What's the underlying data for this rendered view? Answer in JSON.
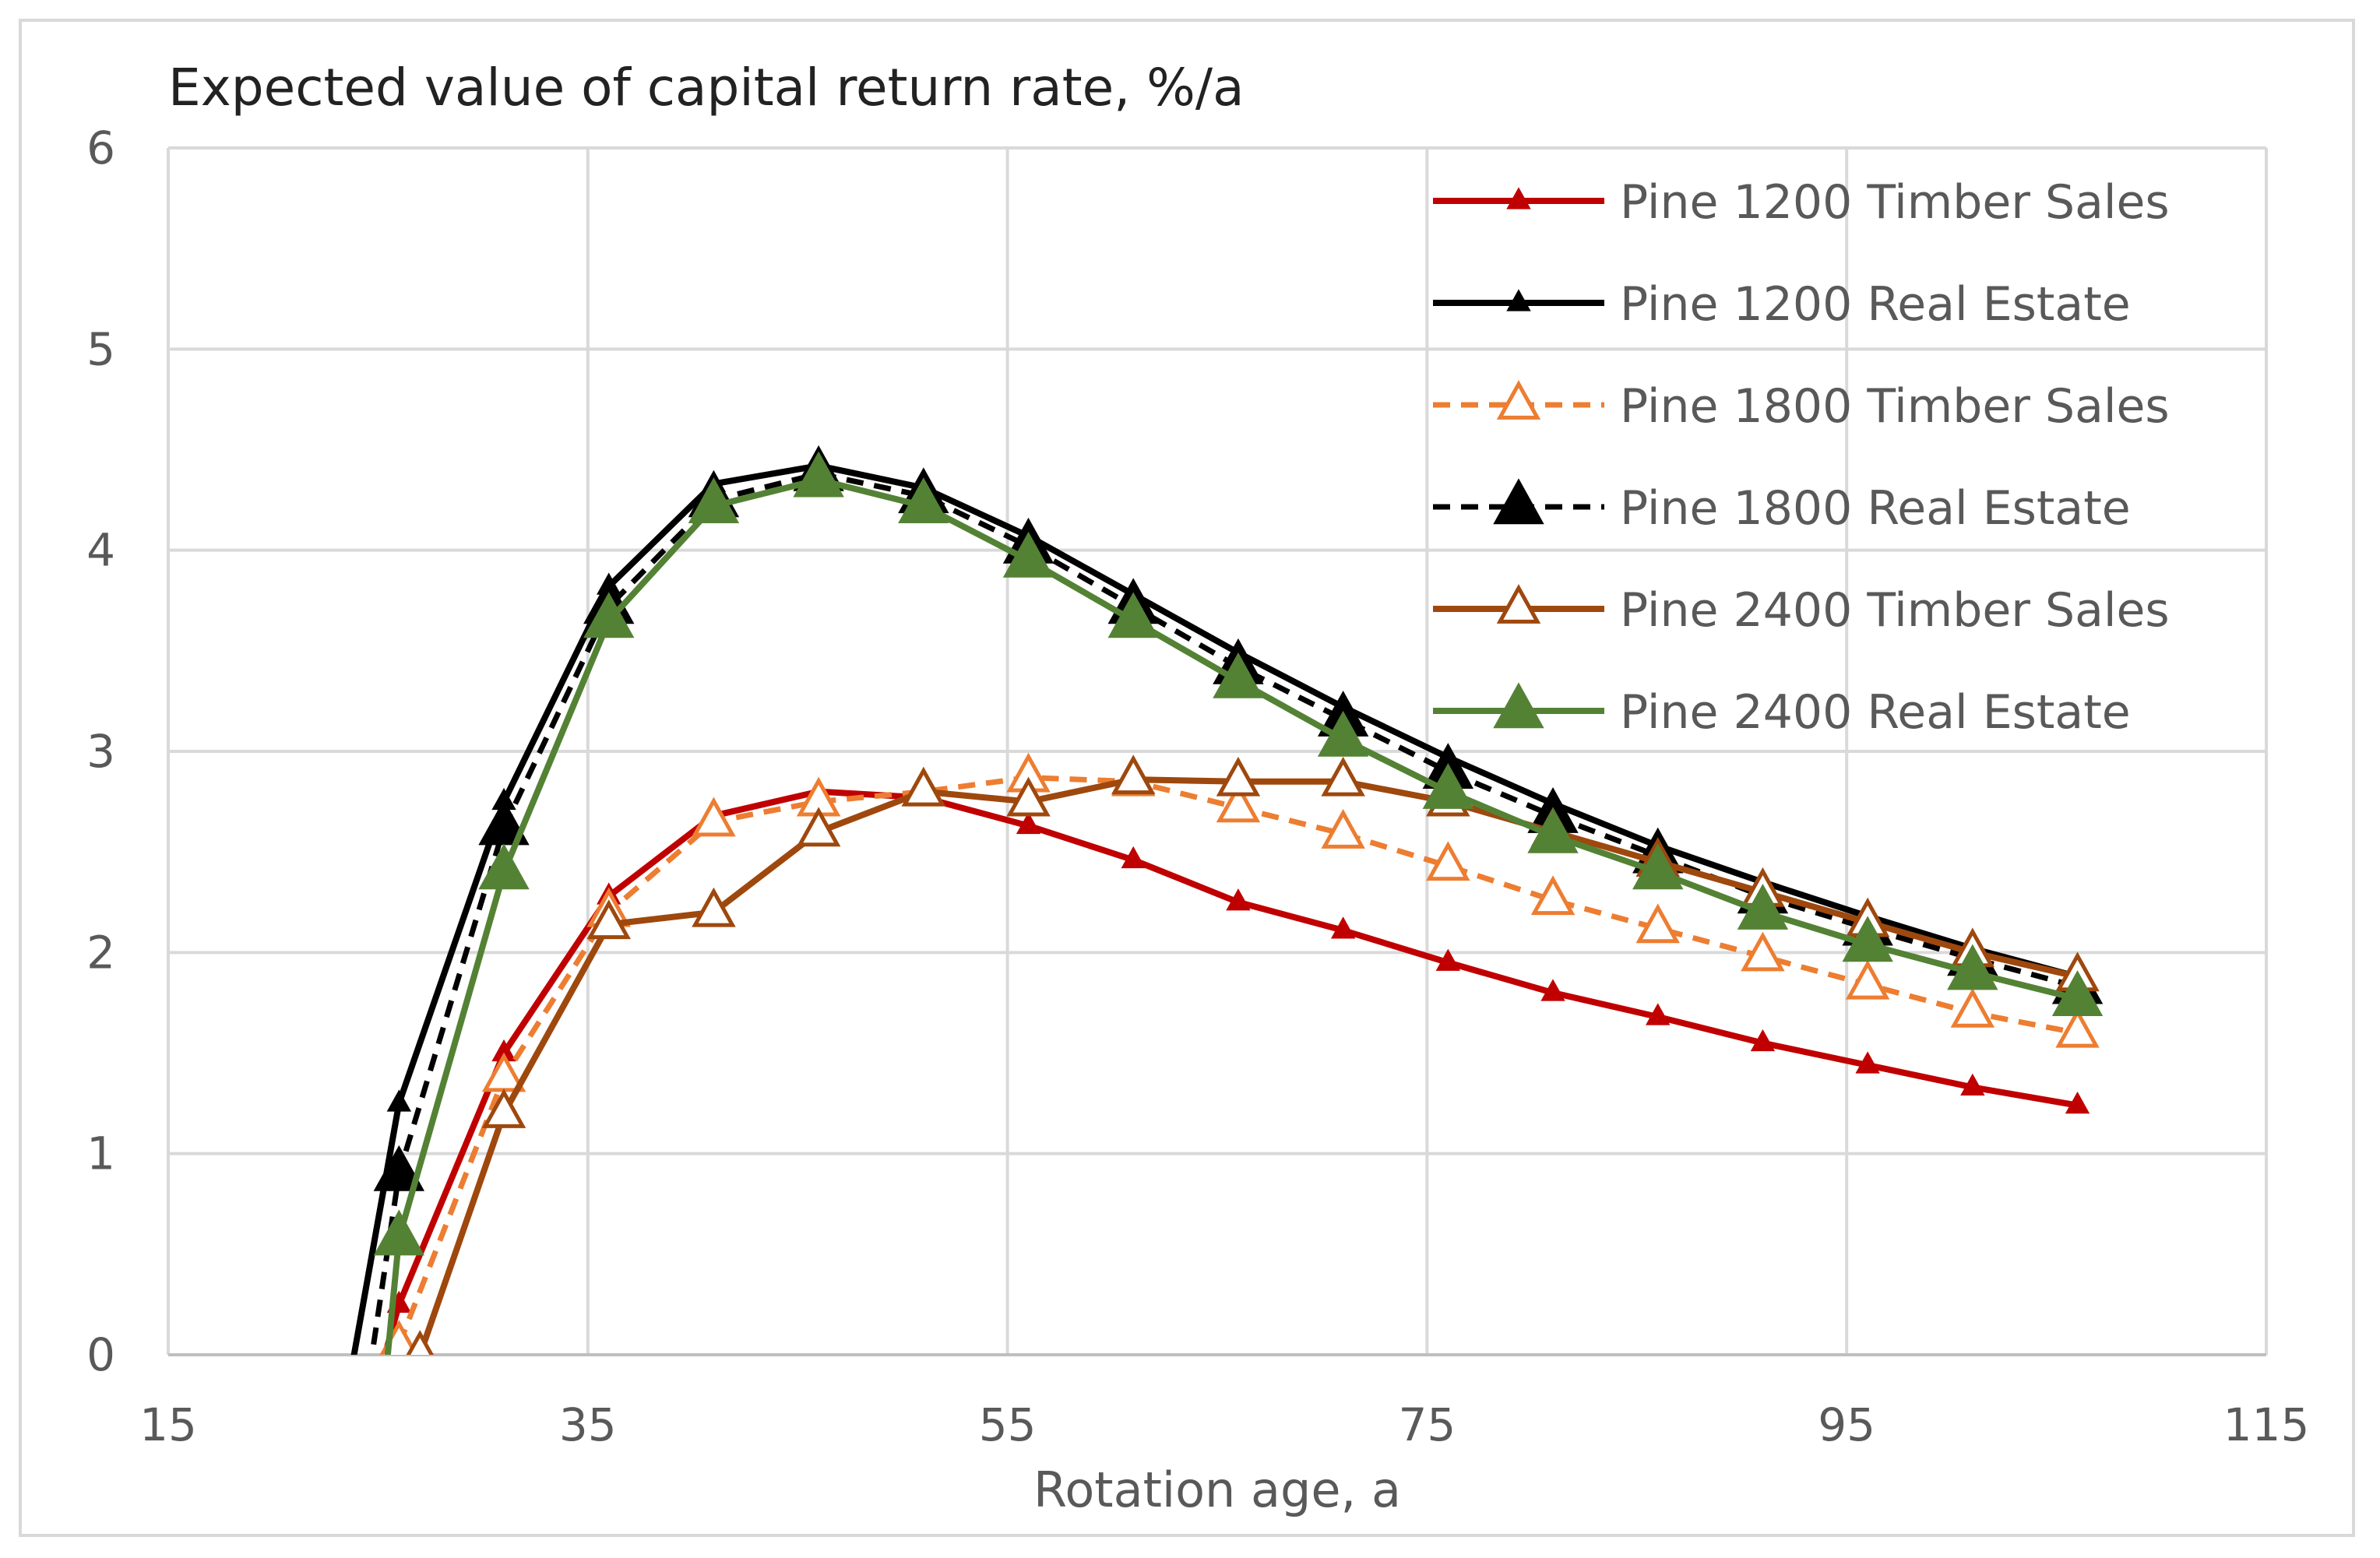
{
  "chart_data": {
    "type": "line",
    "title": "Expected value of capital return rate,  %/a",
    "xlabel": "Rotation age, a",
    "ylabel": "",
    "xlim": [
      15,
      115
    ],
    "ylim": [
      0,
      6
    ],
    "xticks": [
      15,
      35,
      55,
      75,
      95,
      115
    ],
    "yticks": [
      0,
      1,
      2,
      3,
      4,
      5,
      6
    ],
    "grid": true,
    "legend_position": "top-right",
    "series": [
      {
        "name": "Pine 1200 Timber Sales",
        "color": "#c00000",
        "dash": "solid",
        "marker": "small-filled-triangle",
        "x": [
          26,
          31,
          36,
          41,
          46,
          51,
          56,
          61,
          66,
          71,
          76,
          81,
          86,
          91,
          96,
          101,
          106
        ],
        "y": [
          0.25,
          1.5,
          2.28,
          2.68,
          2.8,
          2.77,
          2.63,
          2.46,
          2.25,
          2.11,
          1.95,
          1.8,
          1.68,
          1.55,
          1.44,
          1.33,
          1.24
        ],
        "line_x": [
          24.0,
          26,
          31,
          36,
          41,
          46,
          51,
          56,
          61,
          66,
          71,
          76,
          81,
          86,
          91,
          96,
          101,
          106
        ],
        "line_y": [
          -0.5,
          0.25,
          1.5,
          2.28,
          2.68,
          2.8,
          2.77,
          2.63,
          2.46,
          2.25,
          2.11,
          1.95,
          1.8,
          1.68,
          1.55,
          1.44,
          1.33,
          1.24
        ]
      },
      {
        "name": "Pine 1200 Real Estate",
        "color": "#000000",
        "dash": "solid",
        "marker": "small-filled-triangle",
        "x": [
          26,
          31,
          36,
          41,
          46,
          51,
          56,
          61,
          66,
          71,
          76,
          81,
          86,
          91,
          96,
          101,
          106
        ],
        "y": [
          1.25,
          2.75,
          3.82,
          4.33,
          4.42,
          4.31,
          4.07,
          3.78,
          3.49,
          3.22,
          2.97,
          2.74,
          2.53,
          2.35,
          2.18,
          2.02,
          1.88
        ],
        "line_x": [
          23.0,
          26,
          31,
          36,
          41,
          46,
          51,
          56,
          61,
          66,
          71,
          76,
          81,
          86,
          91,
          96,
          101,
          106
        ],
        "line_y": [
          -0.5,
          1.25,
          2.75,
          3.82,
          4.33,
          4.42,
          4.31,
          4.07,
          3.78,
          3.49,
          3.22,
          2.97,
          2.74,
          2.53,
          2.35,
          2.18,
          2.02,
          1.88
        ]
      },
      {
        "name": "Pine 1800 Timber Sales",
        "color": "#ed7d31",
        "dash": "dashed",
        "marker": "hollow-triangle",
        "x": [
          26,
          31,
          36,
          41,
          46,
          51,
          56,
          61,
          66,
          71,
          76,
          81,
          86,
          91,
          96,
          101,
          106
        ],
        "y": [
          0.05,
          1.38,
          2.2,
          2.65,
          2.75,
          2.8,
          2.87,
          2.85,
          2.72,
          2.59,
          2.43,
          2.26,
          2.12,
          1.98,
          1.84,
          1.7,
          1.6
        ],
        "line_x": [
          25.0,
          26,
          31,
          36,
          41,
          46,
          51,
          56,
          61,
          66,
          71,
          76,
          81,
          86,
          91,
          96,
          101,
          106
        ],
        "line_y": [
          -0.5,
          0.05,
          1.38,
          2.2,
          2.65,
          2.75,
          2.8,
          2.87,
          2.85,
          2.72,
          2.59,
          2.43,
          2.26,
          2.12,
          1.98,
          1.84,
          1.7,
          1.6
        ]
      },
      {
        "name": "Pine 1800 Real Estate",
        "color": "#000000",
        "dash": "dashed",
        "marker": "large-filled-triangle",
        "x": [
          26,
          31,
          36,
          41,
          46,
          51,
          56,
          61,
          66,
          71,
          76,
          81,
          86,
          91,
          96,
          101,
          106
        ],
        "y": [
          0.9,
          2.62,
          3.72,
          4.25,
          4.38,
          4.27,
          4.02,
          3.72,
          3.42,
          3.16,
          2.9,
          2.68,
          2.48,
          2.28,
          2.12,
          1.97,
          1.83
        ],
        "line_x": [
          24.0,
          26,
          31,
          36,
          41,
          46,
          51,
          56,
          61,
          66,
          71,
          76,
          81,
          86,
          91,
          96,
          101,
          106
        ],
        "line_y": [
          -0.5,
          0.9,
          2.62,
          3.72,
          4.25,
          4.38,
          4.27,
          4.02,
          3.72,
          3.42,
          3.16,
          2.9,
          2.68,
          2.48,
          2.28,
          2.12,
          1.97,
          1.83
        ]
      },
      {
        "name": "Pine 2400 Timber Sales",
        "color": "#9e480e",
        "dash": "solid",
        "marker": "hollow-triangle",
        "x": [
          27,
          31,
          36,
          41,
          46,
          51,
          56,
          61,
          66,
          71,
          76,
          81,
          86,
          91,
          96,
          101,
          106
        ],
        "y": [
          0.0,
          1.2,
          2.14,
          2.2,
          2.6,
          2.8,
          2.75,
          2.86,
          2.85,
          2.85,
          2.75,
          2.6,
          2.45,
          2.3,
          2.15,
          2.0,
          1.88
        ],
        "line_x": [
          26.5,
          27,
          31,
          36,
          41,
          46,
          51,
          56,
          61,
          66,
          71,
          76,
          81,
          86,
          91,
          96,
          101,
          106
        ],
        "line_y": [
          -0.3,
          0.0,
          1.2,
          2.14,
          2.2,
          2.6,
          2.8,
          2.75,
          2.86,
          2.85,
          2.85,
          2.75,
          2.6,
          2.45,
          2.3,
          2.15,
          2.0,
          1.88
        ]
      },
      {
        "name": "Pine 2400 Real Estate",
        "color": "#548235",
        "dash": "solid",
        "marker": "large-filled-triangle",
        "x": [
          26,
          31,
          36,
          41,
          46,
          51,
          56,
          61,
          66,
          71,
          76,
          81,
          86,
          91,
          96,
          101,
          106
        ],
        "y": [
          0.58,
          2.4,
          3.65,
          4.22,
          4.35,
          4.22,
          3.95,
          3.65,
          3.35,
          3.06,
          2.8,
          2.58,
          2.4,
          2.2,
          2.04,
          1.9,
          1.77
        ],
        "line_x": [
          25.0,
          26,
          31,
          36,
          41,
          46,
          51,
          56,
          61,
          66,
          71,
          76,
          81,
          86,
          91,
          96,
          101,
          106
        ],
        "line_y": [
          -0.5,
          0.58,
          2.4,
          3.65,
          4.22,
          4.35,
          4.22,
          3.95,
          3.65,
          3.35,
          3.06,
          2.8,
          2.58,
          2.4,
          2.2,
          2.04,
          1.9,
          1.77
        ]
      }
    ]
  }
}
